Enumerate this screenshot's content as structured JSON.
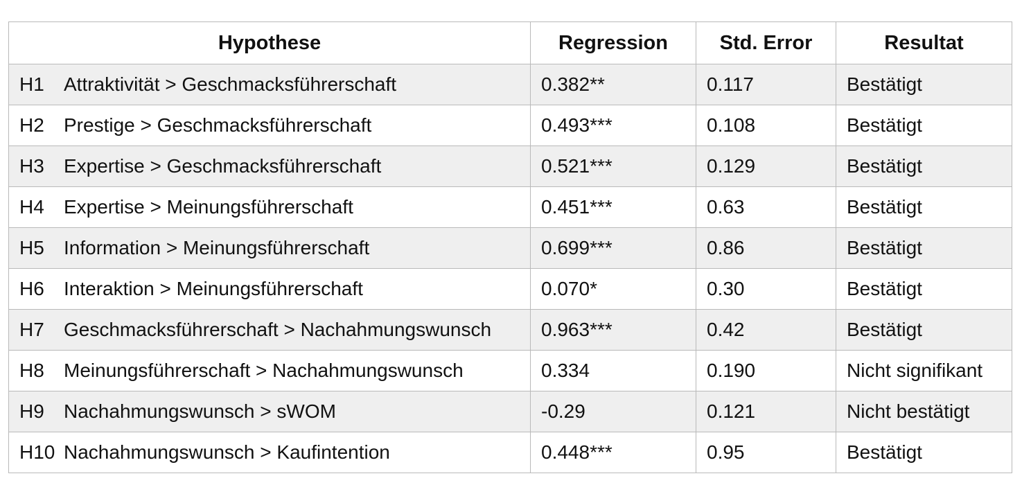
{
  "table": {
    "headers": [
      "Hypothese",
      "Regression",
      "Std. Error",
      "Resultat"
    ],
    "rows": [
      {
        "id": "H1",
        "hypothesis": "Attraktivität > Geschmacksführerschaft",
        "regression": "0.382**",
        "std_error": "0.117",
        "result": "Bestätigt"
      },
      {
        "id": "H2",
        "hypothesis": "Prestige > Geschmacksführerschaft",
        "regression": "0.493***",
        "std_error": "0.108",
        "result": "Bestätigt"
      },
      {
        "id": "H3",
        "hypothesis": "Expertise > Geschmacksführerschaft",
        "regression": "0.521***",
        "std_error": "0.129",
        "result": "Bestätigt"
      },
      {
        "id": "H4",
        "hypothesis": "Expertise > Meinungsführerschaft",
        "regression": "0.451***",
        "std_error": "0.63",
        "result": "Bestätigt"
      },
      {
        "id": "H5",
        "hypothesis": "Information > Meinungsführerschaft",
        "regression": "0.699***",
        "std_error": "0.86",
        "result": "Bestätigt"
      },
      {
        "id": "H6",
        "hypothesis": "Interaktion > Meinungsführerschaft",
        "regression": "0.070*",
        "std_error": "0.30",
        "result": "Bestätigt"
      },
      {
        "id": "H7",
        "hypothesis": "Geschmacksführerschaft > Nachahmungswunsch",
        "regression": "0.963***",
        "std_error": "0.42",
        "result": "Bestätigt"
      },
      {
        "id": "H8",
        "hypothesis": "Meinungsführerschaft > Nachahmungswunsch",
        "regression": "0.334",
        "std_error": "0.190",
        "result": "Nicht signifikant"
      },
      {
        "id": "H9",
        "hypothesis": "Nachahmungswunsch > sWOM",
        "regression": "-0.29",
        "std_error": "0.121",
        "result": "Nicht bestätigt"
      },
      {
        "id": "H10",
        "hypothesis": "Nachahmungswunsch > Kaufintention",
        "regression": "0.448***",
        "std_error": "0.95",
        "result": "Bestätigt"
      }
    ]
  }
}
